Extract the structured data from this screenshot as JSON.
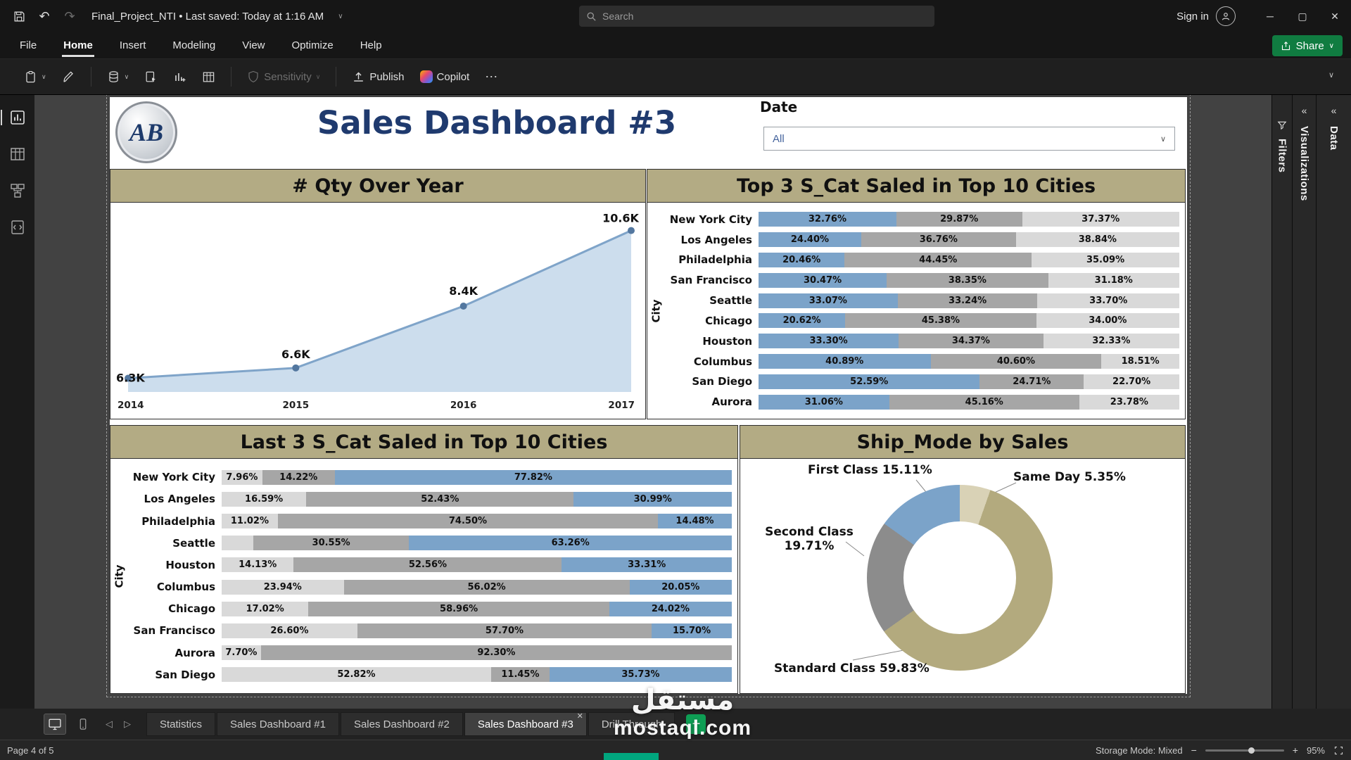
{
  "window": {
    "project": "Final_Project_NTI",
    "separator": "•",
    "saved": "Last saved: Today at 1:16 AM",
    "search_placeholder": "Search",
    "sign_in": "Sign in"
  },
  "menubar": {
    "items": [
      "File",
      "Home",
      "Insert",
      "Modeling",
      "View",
      "Optimize",
      "Help"
    ],
    "active": "Home",
    "share_label": "Share"
  },
  "ribbon": {
    "sensitivity_label": "Sensitivity",
    "publish_label": "Publish",
    "copilot_label": "Copilot"
  },
  "page_header": {
    "logo_text": "AB",
    "title": "Sales Dashboard #3",
    "slicer_label": "Date",
    "slicer_value": "All"
  },
  "colors": {
    "blue": "#7ba3c9",
    "gray_mid": "#a6a6a6",
    "gray_light": "#d9d9d9",
    "khaki": "#b3aa7e",
    "donut_gray": "#8c8c8c",
    "beige": "#d9d2b6",
    "header_bg": "#b3ab84",
    "title_blue": "#1f3a6e",
    "accent_green": "#107c41"
  },
  "chart_data": [
    {
      "name": "qty_over_year",
      "type": "area",
      "title": "# Qty Over Year",
      "x": [
        "2014",
        "2015",
        "2016",
        "2017"
      ],
      "values": [
        6300,
        6600,
        8400,
        10600
      ],
      "labels": [
        "6.3K",
        "6.6K",
        "8.4K",
        "10.6K"
      ],
      "ylim": [
        5900,
        10900
      ],
      "grid": false,
      "legend": "none"
    },
    {
      "name": "top3_scat_top10_cities",
      "type": "bar",
      "subtype": "stacked_100",
      "title": "Top 3 S_Cat Saled in Top 10 Cities",
      "ylabel": "City",
      "segment_colors": [
        "blue",
        "gray_mid",
        "gray_light"
      ],
      "rows": [
        {
          "city": "New York City",
          "values": [
            32.76,
            29.87,
            37.37
          ],
          "labels": [
            "32.76%",
            "29.87%",
            "37.37%"
          ]
        },
        {
          "city": "Los Angeles",
          "values": [
            24.4,
            36.76,
            38.84
          ],
          "labels": [
            "24.40%",
            "36.76%",
            "38.84%"
          ]
        },
        {
          "city": "Philadelphia",
          "values": [
            20.46,
            44.45,
            35.09
          ],
          "labels": [
            "20.46%",
            "44.45%",
            "35.09%"
          ]
        },
        {
          "city": "San Francisco",
          "values": [
            30.47,
            38.35,
            31.18
          ],
          "labels": [
            "30.47%",
            "38.35%",
            "31.18%"
          ]
        },
        {
          "city": "Seattle",
          "values": [
            33.07,
            33.24,
            33.7
          ],
          "labels": [
            "33.07%",
            "33.24%",
            "33.70%"
          ]
        },
        {
          "city": "Chicago",
          "values": [
            20.62,
            45.38,
            34.0
          ],
          "labels": [
            "20.62%",
            "45.38%",
            "34.00%"
          ]
        },
        {
          "city": "Houston",
          "values": [
            33.3,
            34.37,
            32.33
          ],
          "labels": [
            "33.30%",
            "34.37%",
            "32.33%"
          ]
        },
        {
          "city": "Columbus",
          "values": [
            40.89,
            40.6,
            18.51
          ],
          "labels": [
            "40.89%",
            "40.60%",
            "18.51%"
          ]
        },
        {
          "city": "San Diego",
          "values": [
            52.59,
            24.71,
            22.7
          ],
          "labels": [
            "52.59%",
            "24.71%",
            "22.70%"
          ]
        },
        {
          "city": "Aurora",
          "values": [
            31.06,
            45.16,
            23.78
          ],
          "labels": [
            "31.06%",
            "45.16%",
            "23.78%"
          ]
        }
      ]
    },
    {
      "name": "last3_scat_top10_cities",
      "type": "bar",
      "subtype": "stacked_100",
      "title": "Last 3 S_Cat Saled in Top 10 Cities",
      "ylabel": "City",
      "segment_colors": [
        "gray_light",
        "gray_mid",
        "blue"
      ],
      "rows": [
        {
          "city": "New York City",
          "values": [
            7.96,
            14.22,
            77.82
          ],
          "labels": [
            "7.96%",
            "14.22%",
            "77.82%"
          ]
        },
        {
          "city": "Los Angeles",
          "values": [
            16.59,
            52.43,
            30.99
          ],
          "labels": [
            "16.59%",
            "52.43%",
            "30.99%"
          ]
        },
        {
          "city": "Philadelphia",
          "values": [
            11.02,
            74.5,
            14.48
          ],
          "labels": [
            "11.02%",
            "74.50%",
            "14.48%"
          ]
        },
        {
          "city": "Seattle",
          "values": [
            6.19,
            30.55,
            63.26
          ],
          "labels": [
            "",
            "30.55%",
            "63.26%"
          ]
        },
        {
          "city": "Houston",
          "values": [
            14.13,
            52.56,
            33.31
          ],
          "labels": [
            "14.13%",
            "52.56%",
            "33.31%"
          ]
        },
        {
          "city": "Columbus",
          "values": [
            23.94,
            56.02,
            20.05
          ],
          "labels": [
            "23.94%",
            "56.02%",
            "20.05%"
          ]
        },
        {
          "city": "Chicago",
          "values": [
            17.02,
            58.96,
            24.02
          ],
          "labels": [
            "17.02%",
            "58.96%",
            "24.02%"
          ]
        },
        {
          "city": "San Francisco",
          "values": [
            26.6,
            57.7,
            15.7
          ],
          "labels": [
            "26.60%",
            "57.70%",
            "15.70%"
          ]
        },
        {
          "city": "Aurora",
          "values": [
            7.7,
            92.3,
            0
          ],
          "labels": [
            "7.70%",
            "92.30%",
            ""
          ]
        },
        {
          "city": "San Diego",
          "values": [
            52.82,
            11.45,
            35.73
          ],
          "labels": [
            "52.82%",
            "11.45%",
            "35.73%"
          ]
        }
      ]
    },
    {
      "name": "ship_mode_by_sales",
      "type": "pie",
      "subtype": "donut",
      "title": "Ship_Mode by Sales",
      "slices": [
        {
          "label": "Same Day",
          "pct": 5.35,
          "color": "beige"
        },
        {
          "label": "Standard Class",
          "pct": 59.83,
          "color": "khaki"
        },
        {
          "label": "Second Class",
          "pct": 19.71,
          "color": "donut_gray"
        },
        {
          "label": "First Class",
          "pct": 15.11,
          "color": "blue"
        }
      ]
    }
  ],
  "donut_labels": {
    "first": "First Class 15.11%",
    "same_day": "Same Day 5.35%",
    "second_line1": "Second Class",
    "second_line2": "19.71%",
    "standard": "Standard Class 59.83%"
  },
  "tabs": {
    "pages": [
      "Statistics",
      "Sales Dashboard #1",
      "Sales Dashboard #2",
      "Sales Dashboard #3",
      "Drill Through"
    ],
    "active": "Sales Dashboard #3"
  },
  "statusbar": {
    "page_info": "Page 4 of 5",
    "storage_mode": "Storage Mode: Mixed",
    "zoom_out": "−",
    "zoom_in": "+",
    "zoom": "95%"
  },
  "right_panels": {
    "filters": "Filters",
    "visualizations": "Visualizations",
    "data": "Data"
  },
  "watermark": {
    "arabic": "مستقل",
    "latin": "mostaql.com"
  }
}
